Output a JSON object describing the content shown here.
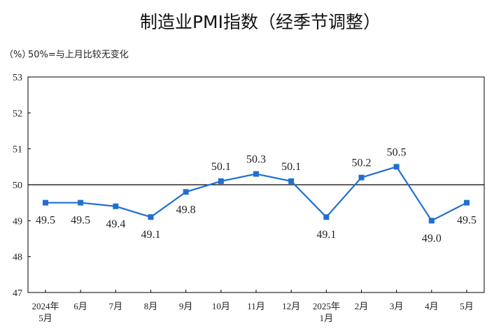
{
  "chart_data": {
    "type": "line",
    "title": "制造业PMI指数（经季节调整）",
    "unit": "（%）",
    "note": "50%=与上月比较无变化",
    "xlabel": "",
    "ylabel": "",
    "ylim": [
      47,
      53
    ],
    "yticks": [
      "47",
      "48",
      "49",
      "50",
      "51",
      "52",
      "53"
    ],
    "reference_line": 50,
    "categories": [
      [
        "2024年",
        "5月"
      ],
      [
        "6月"
      ],
      [
        "7月"
      ],
      [
        "8月"
      ],
      [
        "9月"
      ],
      [
        "10月"
      ],
      [
        "11月"
      ],
      [
        "12月"
      ],
      [
        "2025年",
        "1月"
      ],
      [
        "2月"
      ],
      [
        "3月"
      ],
      [
        "4月"
      ],
      [
        "5月"
      ]
    ],
    "values": [
      49.5,
      49.5,
      49.4,
      49.1,
      49.8,
      50.1,
      50.3,
      50.1,
      49.1,
      50.2,
      50.5,
      49.0,
      49.5
    ],
    "value_labels": [
      "49.5",
      "49.5",
      "49.4",
      "49.1",
      "49.8",
      "50.1",
      "50.3",
      "50.1",
      "49.1",
      "50.2",
      "50.5",
      "49.0",
      "49.5"
    ],
    "label_position": [
      "below",
      "below",
      "below",
      "below",
      "below",
      "above",
      "above",
      "above",
      "below",
      "above",
      "above",
      "below",
      "below"
    ],
    "grid": false,
    "legend": "none",
    "line_color": "#1f6fd1"
  }
}
